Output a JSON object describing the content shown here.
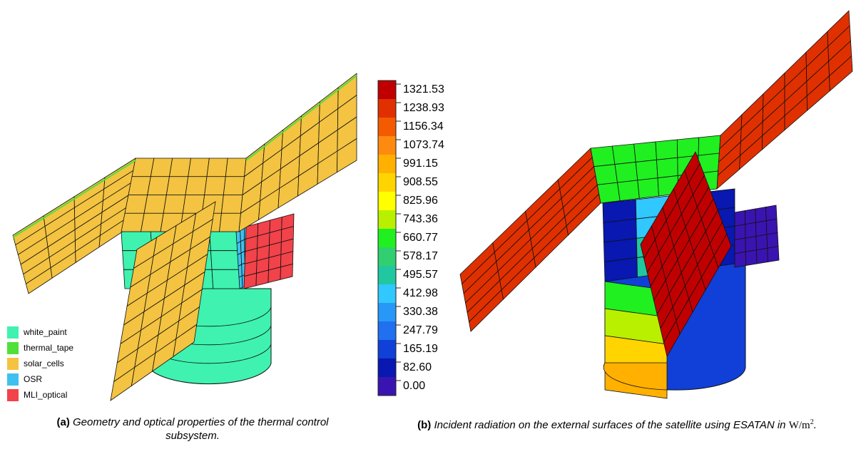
{
  "legend": {
    "items": [
      {
        "name": "white_paint",
        "color": "#3ff2b0"
      },
      {
        "name": "thermal_tape",
        "color": "#4fe03a"
      },
      {
        "name": "solar_cells",
        "color": "#f3c341"
      },
      {
        "name": "OSR",
        "color": "#3ec1ef"
      },
      {
        "name": "MLI_optical",
        "color": "#f2424a"
      }
    ]
  },
  "colorbar": {
    "labels": [
      "1321.53",
      "1238.93",
      "1156.34",
      "1073.74",
      "991.15",
      "908.55",
      "825.96",
      "743.36",
      "660.77",
      "578.17",
      "495.57",
      "412.98",
      "330.38",
      "247.79",
      "165.19",
      "82.60",
      "0.00"
    ],
    "colors": [
      "#c00000",
      "#e03000",
      "#f45a00",
      "#ff8a10",
      "#ffb000",
      "#ffd400",
      "#ffff00",
      "#b8f000",
      "#20f020",
      "#30d070",
      "#20c8a0",
      "#30c8ff",
      "#2898f8",
      "#2070f0",
      "#1040d8",
      "#0818b0",
      "#3a14b0"
    ]
  },
  "captions": {
    "a": {
      "label": "(a)",
      "text": "Geometry and optical properties of the thermal control subsystem."
    },
    "b": {
      "label": "(b)",
      "text": "Incident radiation on the external surfaces of the satellite using ESATAN in",
      "unit": "W/m",
      "exponent": "2",
      "end": "."
    }
  }
}
